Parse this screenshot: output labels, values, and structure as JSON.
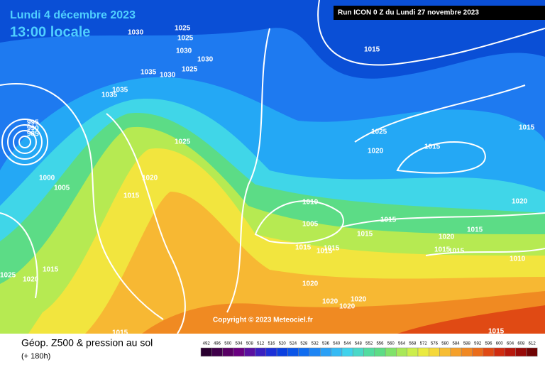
{
  "header": {
    "title": "Lundi 4 décembre 2023",
    "time": "13:00 locale",
    "run": "Run ICON 0 Z du Lundi 27 novembre 2023"
  },
  "copyright": "Copyright © 2023 Meteociel.fr",
  "footer": {
    "product": "Géop. Z500 & pression au sol",
    "lead": "(+ 180h)"
  },
  "scale": [
    492,
    496,
    500,
    504,
    508,
    512,
    516,
    520,
    524,
    528,
    532,
    536,
    540,
    544,
    548,
    552,
    556,
    560,
    564,
    568,
    572,
    576,
    580,
    584,
    588,
    592,
    596,
    600,
    604,
    608,
    612
  ],
  "isobar_labels": [
    "1030",
    "1025",
    "1025",
    "1030",
    "1030",
    "1025",
    "1035",
    "1030",
    "1035",
    "1035",
    "1015",
    "1025",
    "1020",
    "1015",
    "1015",
    "1025",
    "1020",
    "1015",
    "1000",
    "1005",
    "995",
    "990",
    "985",
    "1010",
    "1005",
    "1015",
    "1015",
    "1020",
    "1015",
    "1020",
    "1015",
    "1015",
    "1010",
    "1015",
    "1015",
    "1015",
    "1020",
    "1020",
    "1020",
    "1020",
    "1015",
    "1020",
    "1025",
    "1015",
    "1015"
  ]
}
